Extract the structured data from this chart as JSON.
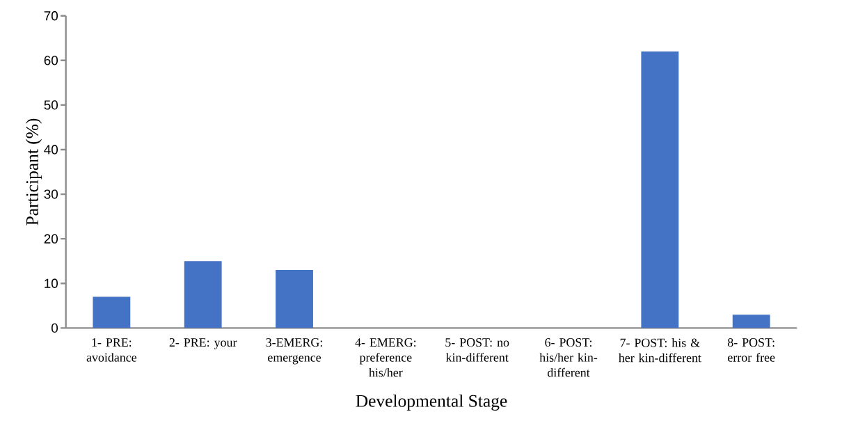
{
  "chart_data": {
    "type": "bar",
    "xlabel": "Developmental Stage",
    "ylabel": "Participant (%)",
    "categories": [
      "1- PRE: avoidance",
      "2- PRE: your",
      "3-EMERG: emergence",
      "4- EMERG: preference his/her",
      "5- POST: no kin-different",
      "6- POST: his/her kin-different",
      "7- POST: his & her kin-different",
      "8- POST: error free"
    ],
    "values": [
      7,
      15,
      13,
      0,
      0,
      0,
      62,
      3
    ],
    "color": "#4472c4",
    "ylim": [
      0,
      70
    ],
    "yticks": [
      0,
      10,
      20,
      30,
      40,
      50,
      60,
      70
    ],
    "grid": false
  }
}
